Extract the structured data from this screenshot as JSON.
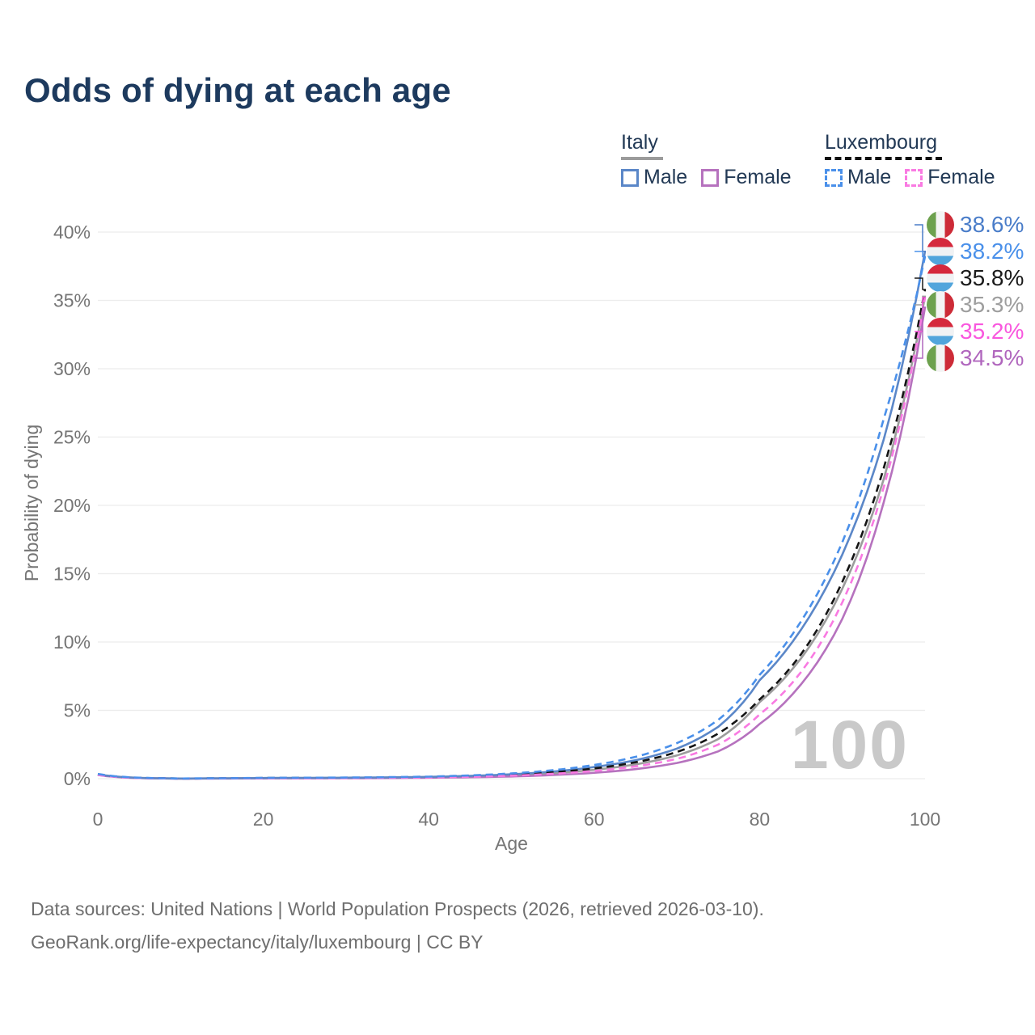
{
  "page": {
    "title": "Odds of dying at each age"
  },
  "legend": {
    "groups": [
      {
        "name": "Italy",
        "line_style": "solid",
        "underline_color": "#9b9b9b",
        "items": [
          {
            "label": "Male",
            "color": "#5b87c8",
            "border_style": "solid"
          },
          {
            "label": "Female",
            "color": "#b672be",
            "border_style": "solid"
          }
        ]
      },
      {
        "name": "Luxembourg",
        "line_style": "dashed",
        "underline_color": "#111111",
        "items": [
          {
            "label": "Male",
            "color": "#4a90ea",
            "border_style": "dashed"
          },
          {
            "label": "Female",
            "color": "#f97ae2",
            "border_style": "dashed"
          }
        ]
      }
    ]
  },
  "watermark": "100",
  "footer": {
    "line1": "Data sources: United Nations | World Population Prospects (2026, retrieved 2026-03-10).",
    "line2": "GeoRank.org/life-expectancy/italy/luxembourg | CC BY"
  },
  "chart_data": {
    "type": "line",
    "title": "Odds of dying at each age",
    "xlabel": "Age",
    "ylabel": "Probability of dying",
    "xlim": [
      0,
      100
    ],
    "ylim": [
      0,
      40
    ],
    "x_ticks": [
      0,
      20,
      40,
      60,
      80,
      100
    ],
    "y_ticks": [
      0,
      5,
      10,
      15,
      20,
      25,
      30,
      35,
      40
    ],
    "y_tick_suffix": "%",
    "grid": "horizontal",
    "legend_position": "top-right",
    "units": "percent probability of dying at each age",
    "ages": [
      0,
      10,
      20,
      30,
      40,
      50,
      55,
      60,
      65,
      70,
      75,
      80,
      85,
      90,
      95,
      100
    ],
    "series": [
      {
        "name": "Italy Male",
        "country": "Italy",
        "sex": "Male",
        "color": "#5b87c8",
        "dash": "solid",
        "end_value_label": "38.6%",
        "values": [
          0.32,
          0.012,
          0.05,
          0.07,
          0.13,
          0.32,
          0.52,
          0.85,
          1.35,
          2.2,
          3.8,
          7.2,
          10.9,
          16.4,
          24.8,
          38.6
        ]
      },
      {
        "name": "Italy Female",
        "country": "Italy",
        "sex": "Female",
        "color": "#b672be",
        "dash": "solid",
        "end_value_label": "34.5%",
        "values": [
          0.27,
          0.008,
          0.02,
          0.03,
          0.07,
          0.16,
          0.27,
          0.43,
          0.7,
          1.15,
          2.0,
          4.0,
          6.9,
          11.7,
          20.2,
          34.5
        ]
      },
      {
        "name": "Italy Total",
        "country": "Italy",
        "sex": "Both",
        "color": "#9c9c9c",
        "dash": "solid",
        "end_value_label": "35.3%",
        "values": [
          0.29,
          0.01,
          0.04,
          0.055,
          0.1,
          0.25,
          0.41,
          0.65,
          1.05,
          1.7,
          2.9,
          5.6,
          8.8,
          13.9,
          21.9,
          35.3
        ]
      },
      {
        "name": "Luxembourg Male",
        "country": "Luxembourg",
        "sex": "Male",
        "color": "#4a90ea",
        "dash": "dashed",
        "end_value_label": "38.2%",
        "values": [
          0.35,
          0.014,
          0.06,
          0.08,
          0.15,
          0.38,
          0.62,
          1.0,
          1.6,
          2.6,
          4.3,
          7.6,
          11.5,
          17.3,
          26.3,
          38.2
        ]
      },
      {
        "name": "Luxembourg Female",
        "country": "Luxembourg",
        "sex": "Female",
        "color": "#f97ae2",
        "dash": "dashed",
        "end_value_label": "35.2%",
        "values": [
          0.28,
          0.009,
          0.03,
          0.045,
          0.09,
          0.22,
          0.36,
          0.56,
          0.9,
          1.45,
          2.5,
          4.7,
          7.8,
          12.9,
          21.3,
          35.2
        ]
      },
      {
        "name": "Luxembourg Total",
        "country": "Luxembourg",
        "sex": "Both",
        "color": "#141414",
        "dash": "dashed",
        "end_value_label": "35.8%",
        "values": [
          0.3,
          0.011,
          0.045,
          0.06,
          0.12,
          0.29,
          0.47,
          0.75,
          1.2,
          1.95,
          3.3,
          5.8,
          9.1,
          14.4,
          22.7,
          35.8
        ]
      }
    ],
    "end_labels": [
      {
        "series": "Italy Male",
        "text": "38.6%",
        "flag": "italy",
        "color": "#4a7dc9"
      },
      {
        "series": "Luxembourg Male",
        "text": "38.2%",
        "flag": "luxembourg",
        "color": "#4a90ea"
      },
      {
        "series": "Luxembourg Total",
        "text": "35.8%",
        "flag": "luxembourg",
        "color": "#1a1a1a"
      },
      {
        "series": "Italy Total",
        "text": "35.3%",
        "flag": "italy",
        "color": "#9e9e9e"
      },
      {
        "series": "Luxembourg Female",
        "text": "35.2%",
        "flag": "luxembourg",
        "color": "#f957de"
      },
      {
        "series": "Italy Female",
        "text": "34.5%",
        "flag": "italy",
        "color": "#b066bd"
      }
    ],
    "flag_colors": {
      "italy": [
        "#6da14e",
        "#f4f4f4",
        "#cd2b37"
      ],
      "luxembourg": [
        "#d5293d",
        "#f0f2f4",
        "#51a5dc"
      ]
    }
  }
}
